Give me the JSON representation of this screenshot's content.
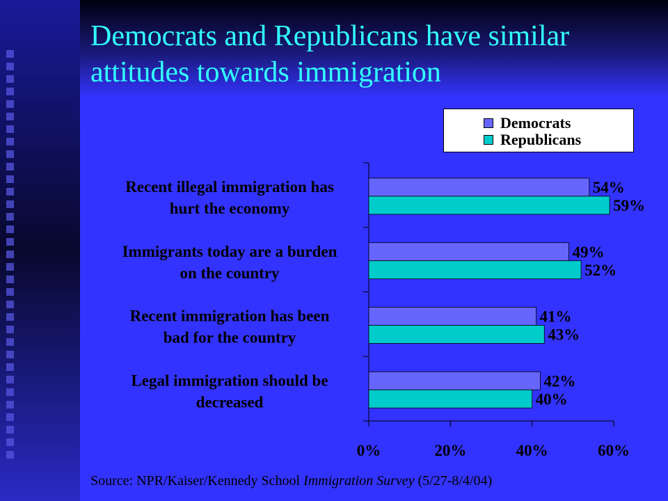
{
  "title": "Democrats and Republicans have similar attitudes towards immigration",
  "source": {
    "prefix": "Source: NPR/Kaiser/Kennedy School ",
    "italic": "Immigration Survey",
    "suffix": " (5/27-8/4/04)"
  },
  "colors": {
    "background": "#3333ff",
    "title": "#33ffff",
    "democrats": "#6666ff",
    "republicans": "#00cccc"
  },
  "chart_data": {
    "type": "bar",
    "orientation": "horizontal",
    "categories": [
      [
        "Recent illegal immigration has",
        "hurt the economy"
      ],
      [
        "Immigrants today are a burden",
        "on the country"
      ],
      [
        "Recent immigration has been",
        "bad for the country"
      ],
      [
        "Legal immigration should be",
        "decreased"
      ]
    ],
    "series": [
      {
        "name": "Democrats",
        "values": [
          54,
          49,
          41,
          42
        ],
        "labels": [
          "54%",
          "49%",
          "41%",
          "42%"
        ]
      },
      {
        "name": "Republicans",
        "values": [
          59,
          52,
          43,
          40
        ],
        "labels": [
          "59%",
          "52%",
          "43%",
          "40%"
        ]
      }
    ],
    "xlim": [
      0,
      60
    ],
    "xticks": [
      "0%",
      "20%",
      "40%",
      "60%"
    ],
    "legend": "top-right",
    "grid": false
  }
}
